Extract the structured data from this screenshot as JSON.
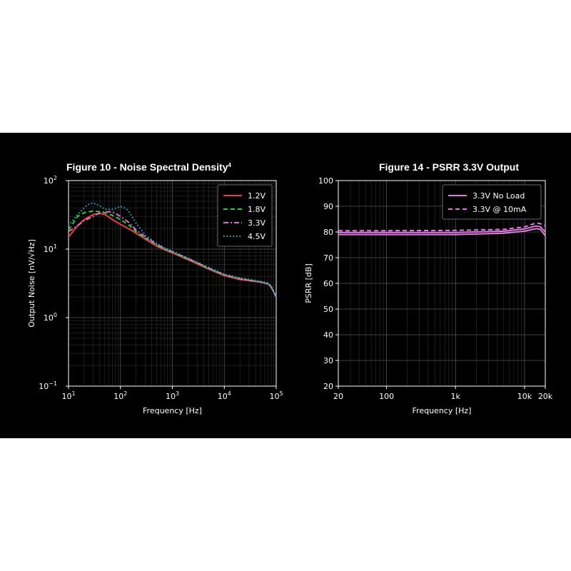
{
  "chart_data": [
    {
      "type": "line",
      "title": "Figure 10 - Noise Spectral Density",
      "title_superscript": "4",
      "xlabel": "Frequency [Hz]",
      "ylabel": "Output Noise [nV/√Hz]",
      "xscale": "log",
      "yscale": "log",
      "xlim": [
        10,
        100000
      ],
      "ylim": [
        0.1,
        100
      ],
      "x_ticks": [
        {
          "base": "10",
          "exp": "1"
        },
        {
          "base": "10",
          "exp": "2"
        },
        {
          "base": "10",
          "exp": "3"
        },
        {
          "base": "10",
          "exp": "4"
        },
        {
          "base": "10",
          "exp": "5"
        }
      ],
      "y_ticks": [
        {
          "base": "10",
          "exp": "−1"
        },
        {
          "base": "10",
          "exp": "0"
        },
        {
          "base": "10",
          "exp": "1"
        },
        {
          "base": "10",
          "exp": "2"
        }
      ],
      "grid": true,
      "legend_position": "top-right",
      "series": [
        {
          "name": "1.2V",
          "color": "#e8413c",
          "dash": "solid",
          "x": [
            10,
            15,
            20,
            30,
            40,
            50,
            70,
            100,
            150,
            200,
            300,
            500,
            700,
            1000,
            2000,
            5000,
            10000,
            20000,
            50000,
            70000,
            80000,
            100000
          ],
          "y": [
            15,
            22,
            27,
            32,
            33,
            32,
            27,
            23,
            19.5,
            17,
            14,
            11,
            9.8,
            8.8,
            7.0,
            5.1,
            4.1,
            3.6,
            3.3,
            3.1,
            2.8,
            2.0
          ]
        },
        {
          "name": "1.8V",
          "color": "#22d23a",
          "dash": "dashed",
          "x": [
            10,
            15,
            20,
            30,
            40,
            50,
            70,
            100,
            150,
            200,
            300,
            500,
            700,
            1000,
            2000,
            5000,
            10000,
            20000,
            50000,
            70000,
            80000,
            100000
          ],
          "y": [
            19,
            30,
            34,
            36,
            35,
            34,
            31,
            27,
            22,
            18,
            14.5,
            11.5,
            10.0,
            9.0,
            7.2,
            5.2,
            4.2,
            3.7,
            3.3,
            3.1,
            2.8,
            2.0
          ]
        },
        {
          "name": "3.3V",
          "color": "#e26ad8",
          "dash": "dashdot",
          "x": [
            10,
            15,
            20,
            30,
            40,
            50,
            70,
            100,
            150,
            200,
            300,
            500,
            700,
            1000,
            2000,
            5000,
            10000,
            20000,
            50000,
            70000,
            80000,
            100000
          ],
          "y": [
            18,
            22,
            26,
            30,
            34,
            35,
            35,
            30,
            24,
            19,
            15,
            11.8,
            10.2,
            9.1,
            7.3,
            5.3,
            4.2,
            3.7,
            3.3,
            3.1,
            2.8,
            2.0
          ]
        },
        {
          "name": "4.5V",
          "color": "#22c2d0",
          "dash": "dotted",
          "x": [
            10,
            15,
            20,
            25,
            30,
            40,
            50,
            70,
            100,
            130,
            150,
            200,
            300,
            500,
            700,
            1000,
            2000,
            5000,
            10000,
            20000,
            50000,
            70000,
            80000,
            100000
          ],
          "y": [
            22,
            32,
            40,
            46,
            47,
            43,
            38,
            38,
            42,
            39,
            34,
            24,
            16,
            12,
            10.5,
            9.3,
            7.4,
            5.4,
            4.3,
            3.8,
            3.4,
            3.2,
            2.9,
            2.0
          ]
        }
      ]
    },
    {
      "type": "line",
      "title": "Figure 14 - PSRR 3.3V Output",
      "xlabel": "Frequency [Hz]",
      "ylabel": "PSRR [dB]",
      "xscale": "log",
      "xlim": [
        20,
        20000
      ],
      "ylim": [
        20,
        100
      ],
      "x_ticks": [
        {
          "value": 20,
          "label": "20"
        },
        {
          "value": 100,
          "label": "100"
        },
        {
          "value": 1000,
          "label": "1k"
        },
        {
          "value": 10000,
          "label": "10k"
        },
        {
          "value": 20000,
          "label": "20k"
        }
      ],
      "y_ticks": [
        20,
        30,
        40,
        50,
        60,
        70,
        80,
        90,
        100
      ],
      "grid": true,
      "legend_position": "top-right",
      "series": [
        {
          "name": "3.3V No Load",
          "color": "#e07ae0",
          "dash": "solid",
          "x": [
            20,
            100,
            1000,
            5000,
            10000,
            13000,
            15000,
            17000,
            20000
          ],
          "y": [
            79,
            79,
            79,
            79.5,
            80.3,
            81,
            81.3,
            81,
            78.5
          ]
        },
        {
          "name": "3.3V No Load",
          "color": "#e07ae0",
          "dash": "solid",
          "legend": false,
          "x": [
            20,
            100,
            1000,
            5000,
            10000,
            13000,
            15000,
            17000,
            20000
          ],
          "y": [
            79.8,
            79.8,
            79.8,
            80.3,
            81.2,
            82,
            82.3,
            82,
            80
          ]
        },
        {
          "name": "3.3V @ 10mA",
          "color": "#e07ae0",
          "dash": "dashed",
          "x": [
            20,
            100,
            1000,
            5000,
            10000,
            13000,
            15000,
            17000,
            20000
          ],
          "y": [
            80.5,
            80.5,
            80.6,
            81,
            82,
            83,
            83.5,
            83.2,
            82.5
          ]
        }
      ]
    }
  ]
}
